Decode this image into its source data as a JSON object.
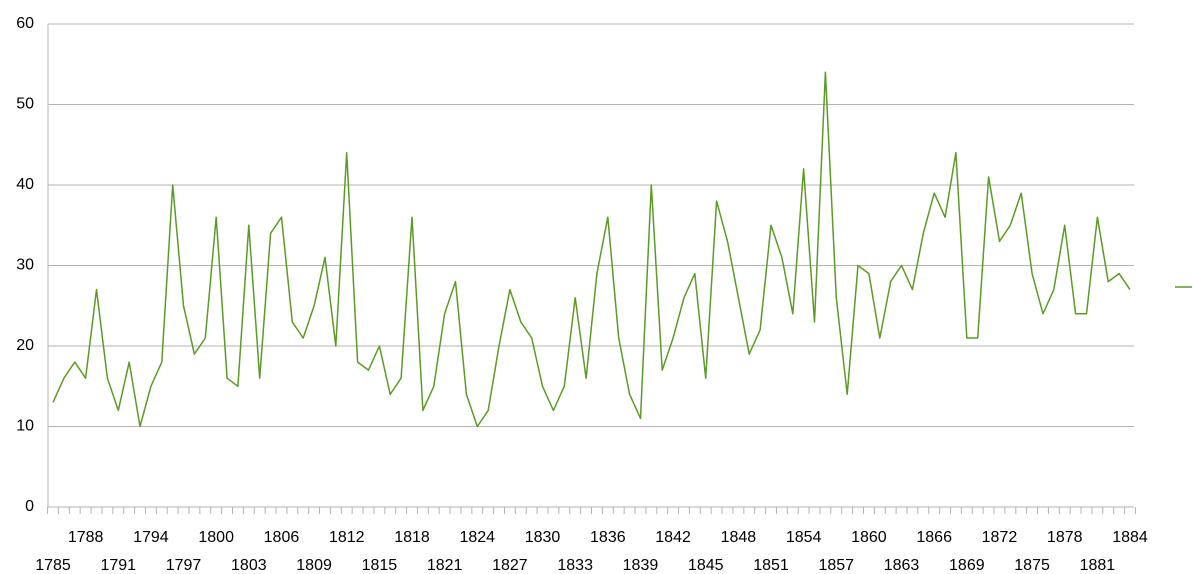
{
  "chart_data": {
    "type": "line",
    "categories": [
      "1785",
      null,
      null,
      "1788",
      null,
      null,
      "1791",
      null,
      null,
      "1794",
      null,
      null,
      "1797",
      null,
      null,
      "1800",
      null,
      null,
      "1803",
      null,
      null,
      "1806",
      null,
      null,
      "1809",
      null,
      null,
      "1812",
      null,
      null,
      "1815",
      null,
      null,
      "1818",
      null,
      null,
      "1821",
      null,
      null,
      "1824",
      null,
      null,
      "1827",
      null,
      null,
      "1830",
      null,
      null,
      "1833",
      null,
      null,
      "1836",
      null,
      null,
      "1839",
      null,
      null,
      "1842",
      null,
      null,
      "1845",
      null,
      null,
      "1848",
      null,
      null,
      "1851",
      null,
      null,
      "1854",
      null,
      null,
      "1857",
      null,
      null,
      "1860",
      null,
      null,
      "1863",
      null,
      null,
      "1866",
      null,
      null,
      "1869",
      null,
      null,
      "1872",
      null,
      null,
      "1875",
      null,
      null,
      "1878",
      null,
      null,
      "1881",
      null,
      null,
      "1884"
    ],
    "series": [
      {
        "color": "#5b9b25",
        "values": [
          13,
          16,
          18,
          16,
          27,
          16,
          12,
          18,
          10,
          15,
          18,
          40,
          25,
          19,
          21,
          36,
          16,
          15,
          35,
          16,
          34,
          36,
          23,
          21,
          25,
          31,
          20,
          44,
          18,
          17,
          20,
          14,
          16,
          36,
          12,
          15,
          24,
          28,
          14,
          10,
          12,
          20,
          27,
          23,
          21,
          15,
          12,
          15,
          26,
          16,
          29,
          36,
          21,
          14,
          11,
          40,
          17,
          21,
          26,
          29,
          16,
          38,
          33,
          26,
          19,
          22,
          35,
          31,
          24,
          42,
          23,
          54,
          26,
          14,
          30,
          29,
          21,
          28,
          30,
          27,
          34,
          39,
          36,
          44,
          21,
          21,
          41,
          33,
          35,
          39,
          29,
          24,
          27,
          35,
          24,
          24,
          36,
          28,
          29,
          27
        ]
      }
    ],
    "ylim": [
      0,
      60
    ],
    "yticks": [
      0,
      10,
      20,
      30,
      40,
      50,
      60
    ],
    "grid": true
  }
}
